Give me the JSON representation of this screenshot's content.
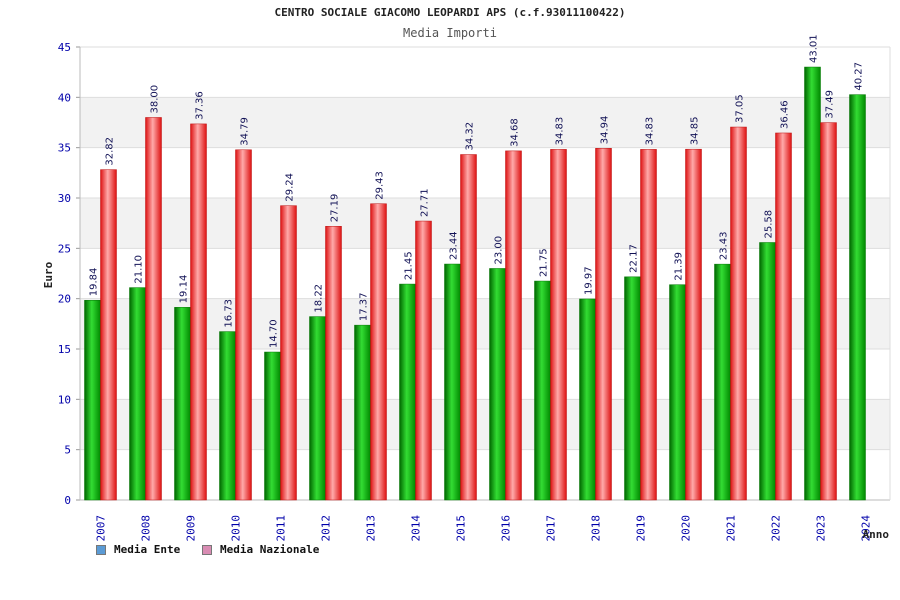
{
  "chart_data": {
    "type": "bar",
    "title": "CENTRO SOCIALE GIACOMO LEOPARDI APS (c.f.93011100422)",
    "subtitle": "Media Importi",
    "xlabel": "Anno",
    "ylabel": "Euro",
    "ylim": [
      0,
      45
    ],
    "yticks": [
      0,
      5,
      10,
      15,
      20,
      25,
      30,
      35,
      40,
      45
    ],
    "grid": true,
    "legend_position": "bottom-left",
    "categories": [
      "2007",
      "2008",
      "2009",
      "2010",
      "2011",
      "2012",
      "2013",
      "2014",
      "2015",
      "2016",
      "2017",
      "2018",
      "2019",
      "2020",
      "2021",
      "2022",
      "2023",
      "2024"
    ],
    "series": [
      {
        "name": "Media Ente",
        "color": "#00bb00",
        "legend_color": "#5b9bd5",
        "values": [
          19.84,
          21.1,
          19.14,
          16.73,
          14.7,
          18.22,
          17.37,
          21.45,
          23.44,
          23.0,
          21.75,
          19.97,
          22.17,
          21.39,
          23.43,
          25.58,
          43.01,
          40.27
        ],
        "labels": [
          "19.84",
          "21.10",
          "19.14",
          "16.73",
          "14.70",
          "18.22",
          "17.37",
          "21.45",
          "23.44",
          "23.00",
          "21.75",
          "19.97",
          "22.17",
          "21.39",
          "23.43",
          "25.58",
          "43.01",
          "40.27"
        ]
      },
      {
        "name": "Media Nazionale",
        "color": "#ee2222",
        "legend_color": "#d98cb3",
        "values": [
          32.82,
          38.0,
          37.36,
          34.79,
          29.24,
          27.19,
          29.43,
          27.71,
          34.32,
          34.68,
          34.83,
          34.94,
          34.83,
          34.85,
          37.05,
          36.46,
          37.49,
          null
        ],
        "labels": [
          "32.82",
          "38.00",
          "37.36",
          "34.79",
          "29.24",
          "27.19",
          "29.43",
          "27.71",
          "34.32",
          "34.68",
          "34.83",
          "34.94",
          "34.83",
          "34.85",
          "37.05",
          "36.46",
          "37.49",
          null
        ]
      }
    ]
  }
}
